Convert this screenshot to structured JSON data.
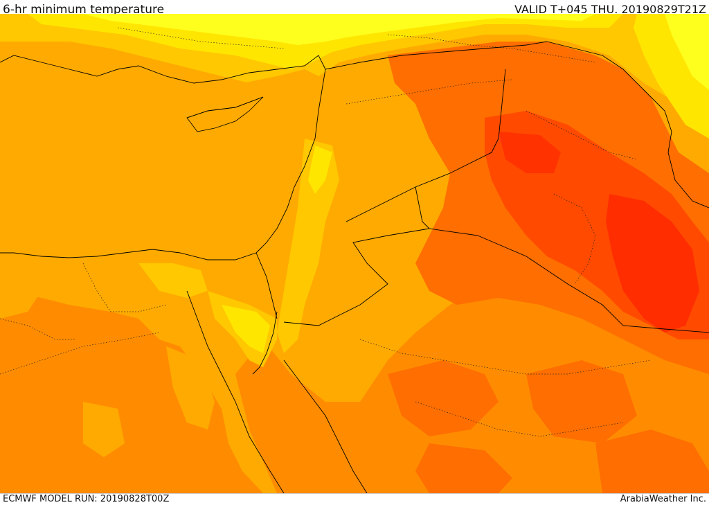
{
  "header": {
    "title": "6-hr minimum temperature",
    "valid": "VALID T+045 THU. 20190829T21Z"
  },
  "footer": {
    "run": "ECMWF MODEL RUN: 20190828T00Z",
    "credit": "ArabiaWeather Inc."
  },
  "palette": {
    "cool_yellow": "#ffff1e",
    "light_yellow": "#ffe600",
    "gold": "#ffc800",
    "amber": "#ffaa00",
    "orange": "#ff8c00",
    "deep_orange": "#ff6e00",
    "red_orange": "#ff5000",
    "red": "#ff2d00",
    "border_line": "#000000"
  }
}
